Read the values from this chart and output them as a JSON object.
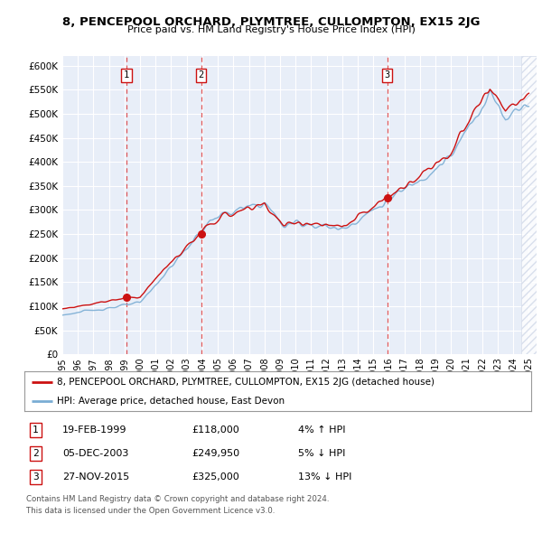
{
  "title": "8, PENCEPOOL ORCHARD, PLYMTREE, CULLOMPTON, EX15 2JG",
  "subtitle": "Price paid vs. HM Land Registry's House Price Index (HPI)",
  "legend_line1": "8, PENCEPOOL ORCHARD, PLYMTREE, CULLOMPTON, EX15 2JG (detached house)",
  "legend_line2": "HPI: Average price, detached house, East Devon",
  "footer1": "Contains HM Land Registry data © Crown copyright and database right 2024.",
  "footer2": "This data is licensed under the Open Government Licence v3.0.",
  "transactions": [
    {
      "num": 1,
      "date": "19-FEB-1999",
      "price": 118000,
      "year": 1999.12,
      "hpi_pct": "4% ↑ HPI"
    },
    {
      "num": 2,
      "date": "05-DEC-2003",
      "price": 249950,
      "year": 2003.92,
      "hpi_pct": "5% ↓ HPI"
    },
    {
      "num": 3,
      "date": "27-NOV-2015",
      "price": 325000,
      "year": 2015.9,
      "hpi_pct": "13% ↓ HPI"
    }
  ],
  "hpi_color": "#7aadd4",
  "price_paid_color": "#cc1111",
  "dashed_line_color": "#dd3333",
  "marker_box_color": "#cc1111",
  "ylim": [
    0,
    620000
  ],
  "xlim_start": 1995.0,
  "xlim_end": 2025.5,
  "plot_bg": "#e8eef8",
  "grid_color": "#ffffff",
  "hatch_color": "#d0d8e8"
}
